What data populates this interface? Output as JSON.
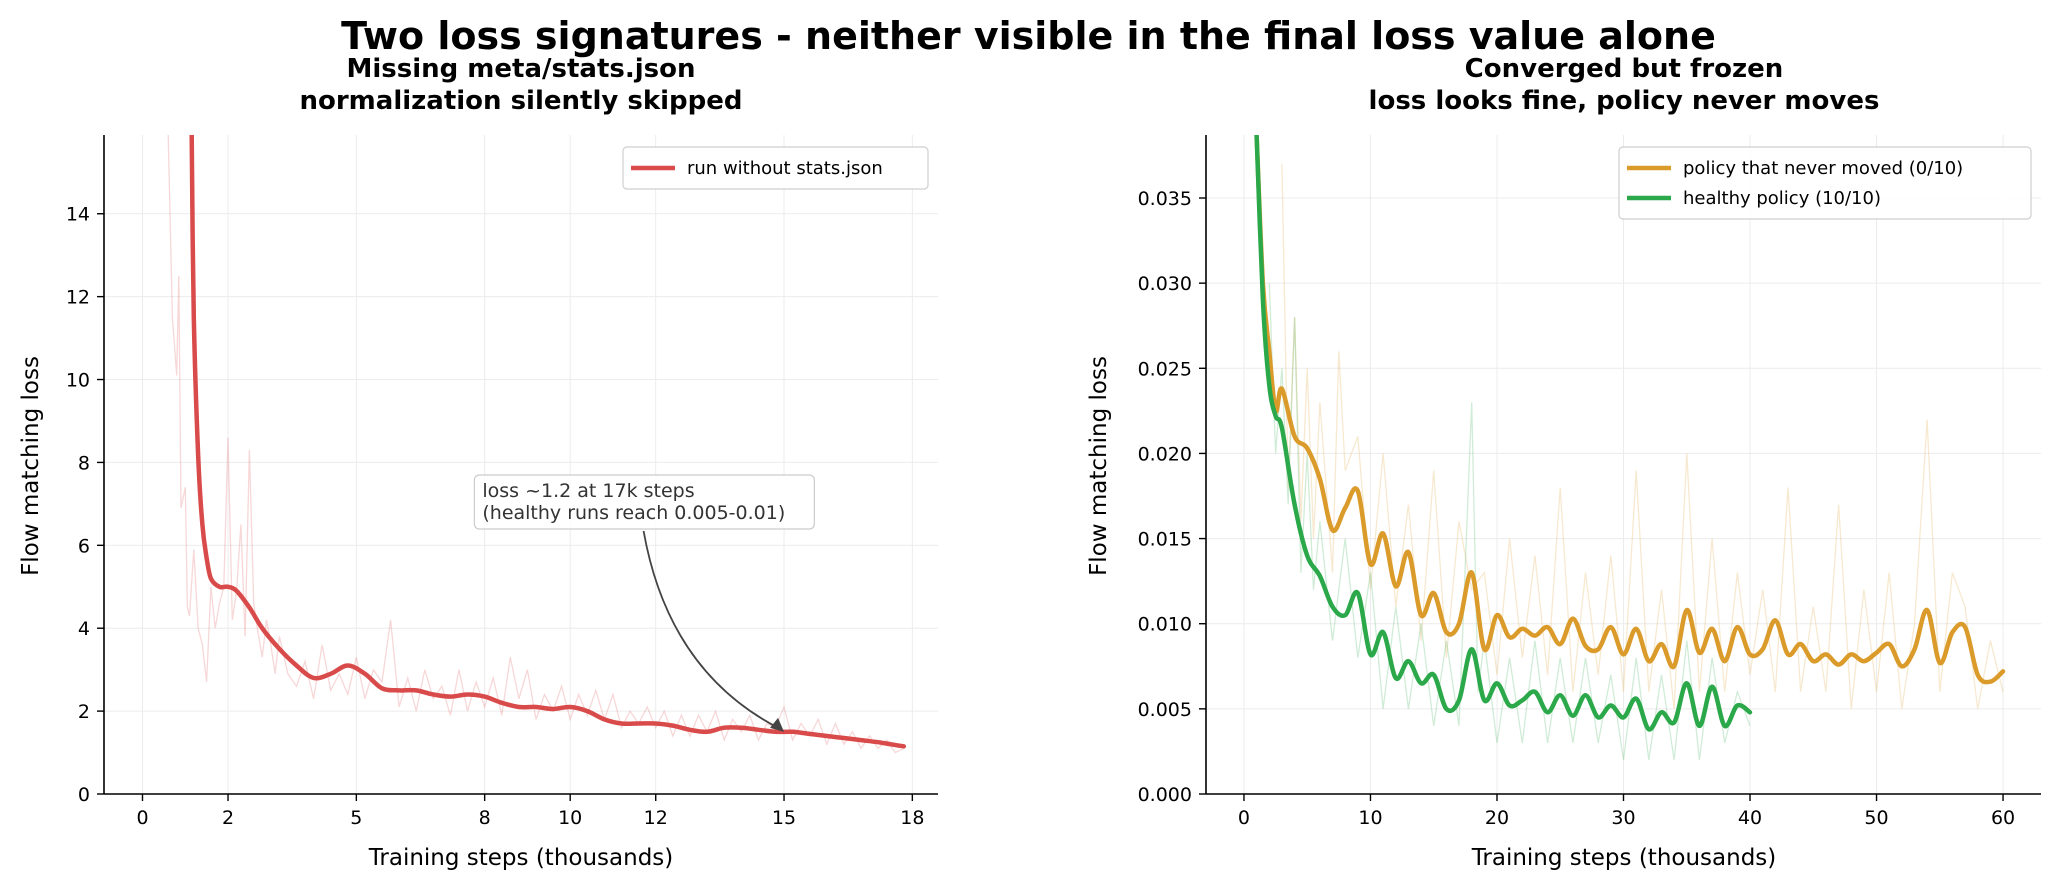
{
  "suptitle": "Two loss signatures - neither visible in the final loss value alone",
  "colors": {
    "red": "#d94a4a",
    "orange": "#db9b2b",
    "green": "#2ba84a",
    "grid": "#ececec",
    "annotation": "#444444"
  },
  "chart_data": [
    {
      "type": "line",
      "title": "Missing meta/stats.json\nnormalization silently skipped",
      "xlabel": "Training steps (thousands)",
      "ylabel": "Flow matching loss",
      "xlim": [
        -0.9,
        18.6
      ],
      "ylim": [
        0,
        15.9
      ],
      "xticks": [
        0,
        2,
        5,
        8,
        10,
        12,
        15,
        18
      ],
      "xtick_labels": [
        "0",
        "2",
        "5",
        "8",
        "10",
        "12",
        "15",
        "18"
      ],
      "yticks": [
        0,
        2,
        4,
        6,
        8,
        10,
        12,
        14
      ],
      "ytick_labels": [
        "0",
        "2",
        "4",
        "6",
        "8",
        "10",
        "12",
        "14"
      ],
      "grid": true,
      "legend_position": "top-right",
      "series": [
        {
          "name": "run without stats.json",
          "color_key": "red",
          "smoothed": true,
          "x": [
            1.15,
            1.2,
            1.3,
            1.4,
            1.5,
            1.6,
            1.8,
            2.0,
            2.2,
            2.5,
            2.8,
            3.2,
            3.6,
            4.0,
            4.4,
            4.8,
            5.2,
            5.6,
            6.0,
            6.4,
            6.8,
            7.2,
            7.6,
            8.0,
            8.4,
            8.8,
            9.2,
            9.6,
            10.0,
            10.4,
            10.8,
            11.2,
            11.6,
            12.0,
            12.4,
            12.8,
            13.2,
            13.6,
            14.0,
            14.4,
            14.8,
            15.2,
            15.6,
            16.0,
            16.4,
            16.8,
            17.2,
            17.5,
            17.8
          ],
          "y": [
            15.9,
            11.5,
            8.2,
            6.5,
            5.7,
            5.2,
            5.0,
            5.0,
            4.9,
            4.5,
            4.0,
            3.5,
            3.1,
            2.8,
            2.9,
            3.1,
            2.9,
            2.55,
            2.5,
            2.5,
            2.4,
            2.35,
            2.4,
            2.35,
            2.2,
            2.1,
            2.1,
            2.05,
            2.1,
            2.0,
            1.8,
            1.7,
            1.7,
            1.7,
            1.65,
            1.55,
            1.5,
            1.6,
            1.6,
            1.55,
            1.5,
            1.5,
            1.45,
            1.4,
            1.35,
            1.3,
            1.25,
            1.2,
            1.15
          ]
        }
      ],
      "raw_trace": {
        "color_key": "red",
        "x": [
          0.6,
          0.7,
          0.8,
          0.85,
          0.9,
          1.0,
          1.05,
          1.1,
          1.2,
          1.3,
          1.4,
          1.5,
          1.6,
          1.7,
          1.8,
          1.9,
          2.0,
          2.1,
          2.2,
          2.3,
          2.4,
          2.5,
          2.6,
          2.7,
          2.8,
          2.9,
          3.0,
          3.1,
          3.2,
          3.4,
          3.6,
          3.8,
          4.0,
          4.2,
          4.4,
          4.6,
          4.8,
          5.0,
          5.2,
          5.4,
          5.6,
          5.8,
          6.0,
          6.2,
          6.4,
          6.6,
          6.8,
          7.0,
          7.2,
          7.4,
          7.6,
          7.8,
          8.0,
          8.2,
          8.4,
          8.6,
          8.8,
          9.0,
          9.2,
          9.4,
          9.6,
          9.8,
          10.0,
          10.2,
          10.4,
          10.6,
          10.8,
          11.0,
          11.2,
          11.4,
          11.6,
          11.8,
          12.0,
          12.2,
          12.4,
          12.6,
          12.8,
          13.0,
          13.2,
          13.4,
          13.6,
          13.8,
          14.0,
          14.2,
          14.4,
          14.6,
          14.8,
          15.0,
          15.2,
          15.4,
          15.6,
          15.8,
          16.0,
          16.2,
          16.4,
          16.6,
          16.8,
          17.0,
          17.2,
          17.4,
          17.6,
          17.8
        ],
        "y": [
          15.9,
          11.5,
          10.1,
          12.5,
          6.9,
          7.4,
          4.5,
          4.3,
          5.9,
          4.0,
          3.6,
          2.7,
          5.0,
          4.0,
          4.6,
          5.0,
          8.6,
          4.2,
          4.9,
          6.5,
          3.8,
          8.3,
          4.6,
          3.9,
          3.3,
          4.2,
          3.6,
          2.9,
          3.8,
          2.9,
          2.6,
          3.2,
          2.3,
          3.6,
          2.5,
          2.9,
          2.4,
          3.3,
          2.3,
          3.0,
          2.7,
          4.2,
          2.1,
          2.8,
          2.0,
          3.0,
          2.3,
          2.6,
          1.9,
          3.0,
          2.0,
          2.7,
          2.1,
          2.8,
          1.9,
          3.3,
          2.3,
          3.0,
          1.8,
          2.4,
          2.0,
          2.6,
          1.8,
          2.4,
          1.9,
          2.5,
          1.8,
          2.4,
          1.6,
          2.0,
          1.7,
          2.1,
          1.6,
          2.0,
          1.4,
          1.9,
          1.4,
          1.9,
          1.5,
          2.0,
          1.3,
          1.8,
          1.5,
          1.9,
          1.3,
          1.7,
          1.6,
          2.1,
          1.3,
          1.7,
          1.4,
          1.8,
          1.2,
          1.7,
          1.2,
          1.5,
          1.1,
          1.4,
          1.1,
          1.3,
          1.0,
          1.1
        ]
      },
      "annotation": {
        "text_lines": [
          "loss ~1.2 at 17k steps",
          "(healthy runs reach 0.005-0.01)"
        ],
        "text_x": 7.9,
        "text_y": 7.6,
        "arrow_x": 15.0,
        "arrow_y": 1.5
      }
    },
    {
      "type": "line",
      "title": "Converged but frozen\nloss looks fine, policy never moves",
      "xlabel": "Training steps (thousands)",
      "ylabel": "Flow matching loss",
      "xlim": [
        -3,
        63
      ],
      "ylim": [
        0,
        0.0387
      ],
      "xticks": [
        0,
        10,
        20,
        30,
        40,
        50,
        60
      ],
      "xtick_labels": [
        "0",
        "10",
        "20",
        "30",
        "40",
        "50",
        "60"
      ],
      "yticks": [
        0,
        0.005,
        0.01,
        0.015,
        0.02,
        0.025,
        0.03,
        0.035
      ],
      "ytick_labels": [
        "0.000",
        "0.005",
        "0.010",
        "0.015",
        "0.020",
        "0.025",
        "0.030",
        "0.035"
      ],
      "grid": true,
      "legend_position": "top-right",
      "series": [
        {
          "name": "policy that never moved (0/10)",
          "color_key": "orange",
          "smoothed": true,
          "x": [
            1.0,
            1.5,
            2.0,
            2.5,
            3.0,
            4.0,
            5.0,
            6.0,
            7.0,
            8.0,
            9.0,
            10.0,
            11.0,
            12.0,
            13.0,
            14.0,
            15.0,
            16.0,
            17.0,
            18.0,
            19.0,
            20.0,
            21.0,
            22.0,
            23.0,
            24.0,
            25.0,
            26.0,
            27.0,
            28.0,
            29.0,
            30.0,
            31.0,
            32.0,
            33.0,
            34.0,
            35.0,
            36.0,
            37.0,
            38.0,
            39.0,
            40.0,
            41.0,
            42.0,
            43.0,
            44.0,
            45.0,
            46.0,
            47.0,
            48.0,
            49.0,
            50.0,
            51.0,
            52.0,
            53.0,
            54.0,
            55.0,
            56.0,
            57.0,
            58.0,
            59.0,
            60.0
          ],
          "y": [
            0.0387,
            0.03,
            0.026,
            0.0225,
            0.0238,
            0.021,
            0.0203,
            0.0185,
            0.0155,
            0.0168,
            0.0178,
            0.0135,
            0.0153,
            0.0122,
            0.0142,
            0.0105,
            0.0118,
            0.0095,
            0.01,
            0.013,
            0.0085,
            0.0105,
            0.0092,
            0.0097,
            0.0093,
            0.0098,
            0.0088,
            0.0103,
            0.0087,
            0.0085,
            0.0098,
            0.0082,
            0.0097,
            0.0078,
            0.0088,
            0.0075,
            0.0108,
            0.0083,
            0.0097,
            0.0078,
            0.0098,
            0.0082,
            0.0085,
            0.0102,
            0.0082,
            0.0088,
            0.0078,
            0.0082,
            0.0076,
            0.0082,
            0.0078,
            0.0083,
            0.0088,
            0.0075,
            0.0085,
            0.0108,
            0.0077,
            0.0095,
            0.0098,
            0.007,
            0.0066,
            0.0072
          ]
        },
        {
          "name": "healthy policy (10/10)",
          "color_key": "green",
          "smoothed": true,
          "x": [
            1.0,
            1.5,
            2.0,
            2.5,
            3.0,
            4.0,
            5.0,
            6.0,
            7.0,
            8.0,
            9.0,
            10.0,
            11.0,
            12.0,
            13.0,
            14.0,
            15.0,
            16.0,
            17.0,
            18.0,
            19.0,
            20.0,
            21.0,
            22.0,
            23.0,
            24.0,
            25.0,
            26.0,
            27.0,
            28.0,
            29.0,
            30.0,
            31.0,
            32.0,
            33.0,
            34.0,
            35.0,
            36.0,
            37.0,
            38.0,
            39.0,
            40.0
          ],
          "y": [
            0.0387,
            0.029,
            0.024,
            0.0222,
            0.0215,
            0.017,
            0.014,
            0.0128,
            0.011,
            0.0105,
            0.0118,
            0.0082,
            0.0095,
            0.0068,
            0.0078,
            0.0065,
            0.007,
            0.005,
            0.0055,
            0.0085,
            0.0055,
            0.0065,
            0.0052,
            0.0055,
            0.006,
            0.0048,
            0.0058,
            0.0046,
            0.0058,
            0.0045,
            0.0052,
            0.0045,
            0.0056,
            0.0038,
            0.0048,
            0.0042,
            0.0065,
            0.004,
            0.0063,
            0.004,
            0.0052,
            0.0048
          ]
        }
      ],
      "raw_traces": [
        {
          "color_key": "orange",
          "x": [
            3.0,
            3.5,
            4.0,
            4.5,
            5.0,
            5.5,
            6.0,
            7.0,
            7.5,
            8.0,
            9.0,
            10.0,
            11.0,
            12.0,
            13.0,
            14.0,
            15.0,
            16.0,
            17.0,
            18.0,
            19.0,
            20.0,
            21.0,
            22.0,
            23.0,
            24.0,
            25.0,
            26.0,
            27.0,
            28.0,
            29.0,
            30.0,
            31.0,
            32.0,
            33.0,
            34.0,
            35.0,
            36.0,
            37.0,
            38.0,
            39.0,
            40.0,
            41.0,
            42.0,
            43.0,
            44.0,
            45.0,
            46.0,
            47.0,
            48.0,
            49.0,
            50.0,
            51.0,
            52.0,
            53.0,
            54.0,
            55.0,
            56.0,
            57.0,
            58.0,
            59.0,
            60.0
          ],
          "y": [
            0.037,
            0.018,
            0.028,
            0.016,
            0.025,
            0.015,
            0.023,
            0.013,
            0.026,
            0.019,
            0.021,
            0.012,
            0.02,
            0.011,
            0.017,
            0.009,
            0.019,
            0.008,
            0.016,
            0.012,
            0.013,
            0.007,
            0.015,
            0.008,
            0.014,
            0.007,
            0.018,
            0.006,
            0.013,
            0.007,
            0.014,
            0.006,
            0.019,
            0.006,
            0.012,
            0.005,
            0.02,
            0.006,
            0.015,
            0.006,
            0.013,
            0.007,
            0.012,
            0.006,
            0.018,
            0.006,
            0.011,
            0.006,
            0.017,
            0.005,
            0.012,
            0.006,
            0.013,
            0.005,
            0.01,
            0.022,
            0.006,
            0.013,
            0.011,
            0.005,
            0.009,
            0.006
          ]
        },
        {
          "color_key": "green",
          "x": [
            2.0,
            2.5,
            3.0,
            3.5,
            4.0,
            4.5,
            5.0,
            5.5,
            6.0,
            7.0,
            8.0,
            9.0,
            10.0,
            11.0,
            12.0,
            13.0,
            14.0,
            15.0,
            16.0,
            17.0,
            18.0,
            18.5,
            19.0,
            20.0,
            21.0,
            22.0,
            23.0,
            24.0,
            25.0,
            26.0,
            27.0,
            28.0,
            29.0,
            30.0,
            31.0,
            32.0,
            33.0,
            34.0,
            35.0,
            36.0,
            37.0,
            38.0,
            39.0,
            40.0
          ],
          "y": [
            0.03,
            0.02,
            0.025,
            0.017,
            0.028,
            0.013,
            0.02,
            0.012,
            0.016,
            0.009,
            0.015,
            0.008,
            0.013,
            0.005,
            0.011,
            0.005,
            0.01,
            0.004,
            0.009,
            0.004,
            0.023,
            0.006,
            0.009,
            0.003,
            0.008,
            0.003,
            0.009,
            0.003,
            0.008,
            0.003,
            0.008,
            0.003,
            0.007,
            0.002,
            0.008,
            0.002,
            0.007,
            0.002,
            0.009,
            0.002,
            0.008,
            0.003,
            0.006,
            0.004
          ]
        }
      ]
    }
  ]
}
